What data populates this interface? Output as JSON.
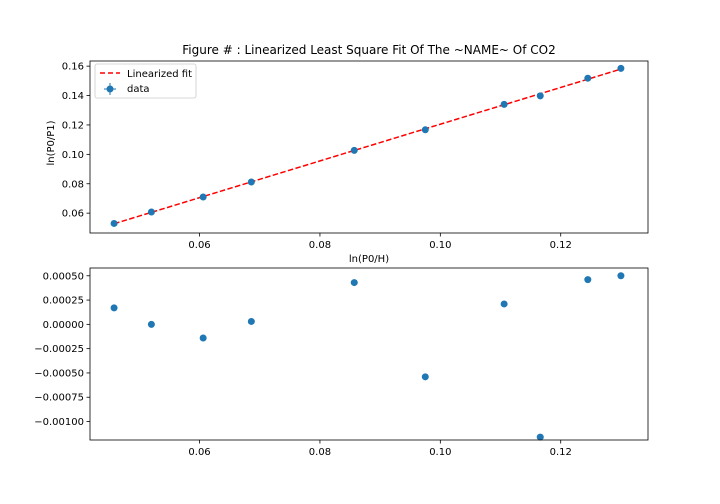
{
  "chart_data": [
    {
      "type": "scatter",
      "title": "Figure # : Linearized Least Square Fit Of The ~NAME~ Of CO2",
      "xlabel": "ln(P0/H)",
      "ylabel": "ln(P0/P1)",
      "xlim": [
        0.0418,
        0.1345
      ],
      "ylim": [
        0.0465,
        0.1635
      ],
      "x_ticks": [
        0.06,
        0.08,
        0.1,
        0.12
      ],
      "x_tick_labels": [
        "0.06",
        "0.08",
        "0.10",
        "0.12"
      ],
      "y_ticks": [
        0.06,
        0.08,
        0.1,
        0.12,
        0.14,
        0.16
      ],
      "y_tick_labels": [
        "0.06",
        "0.08",
        "0.10",
        "0.12",
        "0.14",
        "0.16"
      ],
      "grid": false,
      "legend": {
        "position": "upper-left",
        "entries": [
          {
            "label": "Linearized fit",
            "style": "dashed-line",
            "color": "#ff0000"
          },
          {
            "label": "data",
            "style": "errorbar-marker",
            "color": "#1f77b4"
          }
        ]
      },
      "series": [
        {
          "name": "data",
          "kind": "points",
          "color": "#1f77b4",
          "x": [
            0.0458,
            0.052,
            0.0606,
            0.0686,
            0.0857,
            0.0975,
            0.1106,
            0.1166,
            0.1245,
            0.13
          ],
          "y": [
            0.053,
            0.0608,
            0.071,
            0.0812,
            0.1027,
            0.1167,
            0.134,
            0.1398,
            0.1518,
            0.1585
          ]
        },
        {
          "name": "Linearized fit",
          "kind": "line",
          "color": "#ff0000",
          "dash": "dashed",
          "x": [
            0.0458,
            0.13
          ],
          "y": [
            0.0528,
            0.158
          ]
        }
      ]
    },
    {
      "type": "scatter",
      "title": "",
      "xlabel": "",
      "ylabel": "",
      "xlim": [
        0.0418,
        0.1345
      ],
      "ylim": [
        -0.00119,
        0.00058
      ],
      "x_ticks": [
        0.06,
        0.08,
        0.1,
        0.12
      ],
      "x_tick_labels": [
        "0.06",
        "0.08",
        "0.10",
        "0.12"
      ],
      "y_ticks": [
        -0.001,
        -0.00075,
        -0.0005,
        -0.00025,
        0.0,
        0.00025,
        0.0005
      ],
      "y_tick_labels": [
        "−0.00100",
        "−0.00075",
        "−0.00050",
        "−0.00025",
        "0.00000",
        "0.00025",
        "0.00050"
      ],
      "grid": false,
      "series": [
        {
          "name": "",
          "kind": "points",
          "color": "#1f77b4",
          "x": [
            0.0458,
            0.052,
            0.0606,
            0.0686,
            0.0857,
            0.0975,
            0.1106,
            0.1166,
            0.1245,
            0.13
          ],
          "y": [
            0.00017,
            0.0,
            -0.00014,
            3e-05,
            0.00043,
            -0.00054,
            0.00021,
            -0.00116,
            0.00046,
            0.0005
          ]
        }
      ]
    }
  ]
}
